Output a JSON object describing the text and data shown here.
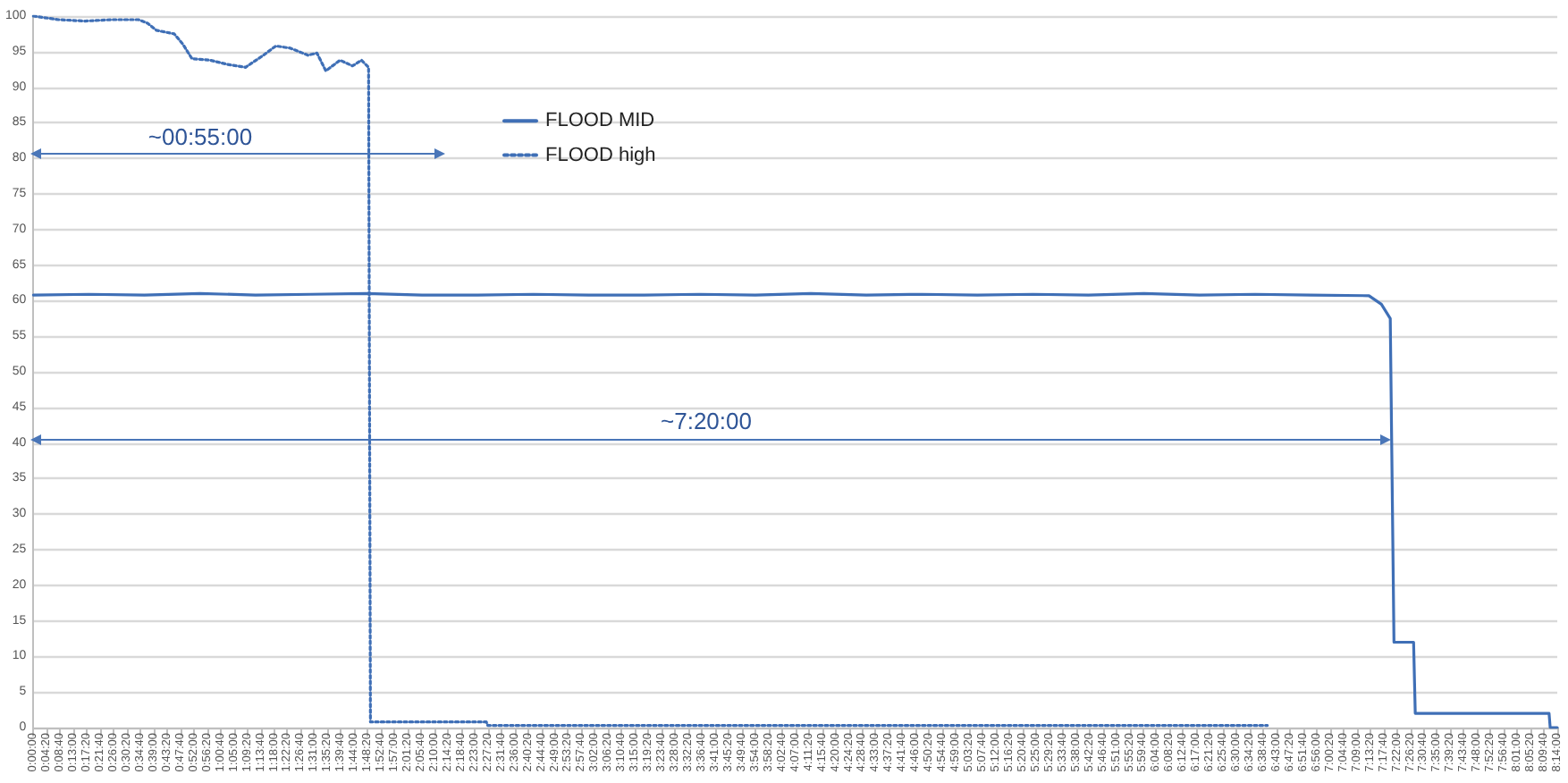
{
  "chart_data": {
    "type": "line",
    "legend": "top left",
    "grid": "y",
    "marker": "none",
    "xlim": [
      0,
      8.2333
    ],
    "ylim": [
      0,
      100
    ],
    "yticks": [
      0,
      5,
      10,
      15,
      20,
      25,
      30,
      35,
      40,
      45,
      50,
      55,
      60,
      65,
      70,
      75,
      80,
      85,
      90,
      95,
      100
    ],
    "xticks": [
      {
        "value": 0,
        "label": "0:00:00"
      },
      {
        "value": 0.0722,
        "label": "0:04:20"
      },
      {
        "value": 0.1444,
        "label": "0:08:40"
      },
      {
        "value": 0.2167,
        "label": "0:13:00"
      },
      {
        "value": 0.2889,
        "label": "0:17:20"
      },
      {
        "value": 0.3611,
        "label": "0:21:40"
      },
      {
        "value": 0.4333,
        "label": "0:26:00"
      },
      {
        "value": 0.5056,
        "label": "0:30:20"
      },
      {
        "value": 0.5778,
        "label": "0:34:40"
      },
      {
        "value": 0.65,
        "label": "0:39:00"
      },
      {
        "value": 0.7222,
        "label": "0:43:20"
      },
      {
        "value": 0.7944,
        "label": "0:47:40"
      },
      {
        "value": 0.8667,
        "label": "0:52:00"
      },
      {
        "value": 0.9389,
        "label": "0:56:20"
      },
      {
        "value": 1.0111,
        "label": "1:00:40"
      },
      {
        "value": 1.0833,
        "label": "1:05:00"
      },
      {
        "value": 1.1556,
        "label": "1:09:20"
      },
      {
        "value": 1.2278,
        "label": "1:13:40"
      },
      {
        "value": 1.3,
        "label": "1:18:00"
      },
      {
        "value": 1.3722,
        "label": "1:22:20"
      },
      {
        "value": 1.4444,
        "label": "1:26:40"
      },
      {
        "value": 1.5167,
        "label": "1:31:00"
      },
      {
        "value": 1.5889,
        "label": "1:35:20"
      },
      {
        "value": 1.6611,
        "label": "1:39:40"
      },
      {
        "value": 1.7333,
        "label": "1:44:00"
      },
      {
        "value": 1.8056,
        "label": "1:48:20"
      },
      {
        "value": 1.8778,
        "label": "1:52:40"
      },
      {
        "value": 1.95,
        "label": "1:57:00"
      },
      {
        "value": 2.0222,
        "label": "2:01:20"
      },
      {
        "value": 2.0944,
        "label": "2:05:40"
      },
      {
        "value": 2.1667,
        "label": "2:10:00"
      },
      {
        "value": 2.2389,
        "label": "2:14:20"
      },
      {
        "value": 2.3111,
        "label": "2:18:40"
      },
      {
        "value": 2.3833,
        "label": "2:23:00"
      },
      {
        "value": 2.4556,
        "label": "2:27:20"
      },
      {
        "value": 2.5278,
        "label": "2:31:40"
      },
      {
        "value": 2.6,
        "label": "2:36:00"
      },
      {
        "value": 2.6722,
        "label": "2:40:20"
      },
      {
        "value": 2.7444,
        "label": "2:44:40"
      },
      {
        "value": 2.8167,
        "label": "2:49:00"
      },
      {
        "value": 2.8889,
        "label": "2:53:20"
      },
      {
        "value": 2.9611,
        "label": "2:57:40"
      },
      {
        "value": 3.0333,
        "label": "3:02:00"
      },
      {
        "value": 3.1056,
        "label": "3:06:20"
      },
      {
        "value": 3.1778,
        "label": "3:10:40"
      },
      {
        "value": 3.25,
        "label": "3:15:00"
      },
      {
        "value": 3.3222,
        "label": "3:19:20"
      },
      {
        "value": 3.3944,
        "label": "3:23:40"
      },
      {
        "value": 3.4667,
        "label": "3:28:00"
      },
      {
        "value": 3.5389,
        "label": "3:32:20"
      },
      {
        "value": 3.6111,
        "label": "3:36:40"
      },
      {
        "value": 3.6833,
        "label": "3:41:00"
      },
      {
        "value": 3.7556,
        "label": "3:45:20"
      },
      {
        "value": 3.8278,
        "label": "3:49:40"
      },
      {
        "value": 3.9,
        "label": "3:54:00"
      },
      {
        "value": 3.9722,
        "label": "3:58:20"
      },
      {
        "value": 4.0444,
        "label": "4:02:40"
      },
      {
        "value": 4.1167,
        "label": "4:07:00"
      },
      {
        "value": 4.1889,
        "label": "4:11:20"
      },
      {
        "value": 4.2611,
        "label": "4:15:40"
      },
      {
        "value": 4.3333,
        "label": "4:20:00"
      },
      {
        "value": 4.4056,
        "label": "4:24:20"
      },
      {
        "value": 4.4778,
        "label": "4:28:40"
      },
      {
        "value": 4.55,
        "label": "4:33:00"
      },
      {
        "value": 4.6222,
        "label": "4:37:20"
      },
      {
        "value": 4.6944,
        "label": "4:41:40"
      },
      {
        "value": 4.7667,
        "label": "4:46:00"
      },
      {
        "value": 4.8389,
        "label": "4:50:20"
      },
      {
        "value": 4.9111,
        "label": "4:54:40"
      },
      {
        "value": 4.9833,
        "label": "4:59:00"
      },
      {
        "value": 5.0556,
        "label": "5:03:20"
      },
      {
        "value": 5.1278,
        "label": "5:07:40"
      },
      {
        "value": 5.2,
        "label": "5:12:00"
      },
      {
        "value": 5.2722,
        "label": "5:16:20"
      },
      {
        "value": 5.3444,
        "label": "5:20:40"
      },
      {
        "value": 5.4167,
        "label": "5:25:00"
      },
      {
        "value": 5.4889,
        "label": "5:29:20"
      },
      {
        "value": 5.5611,
        "label": "5:33:40"
      },
      {
        "value": 5.6333,
        "label": "5:38:00"
      },
      {
        "value": 5.7056,
        "label": "5:42:20"
      },
      {
        "value": 5.7778,
        "label": "5:46:40"
      },
      {
        "value": 5.85,
        "label": "5:51:00"
      },
      {
        "value": 5.9222,
        "label": "5:55:20"
      },
      {
        "value": 5.9944,
        "label": "5:59:40"
      },
      {
        "value": 6.0667,
        "label": "6:04:00"
      },
      {
        "value": 6.1389,
        "label": "6:08:20"
      },
      {
        "value": 6.2111,
        "label": "6:12:40"
      },
      {
        "value": 6.2833,
        "label": "6:17:00"
      },
      {
        "value": 6.3556,
        "label": "6:21:20"
      },
      {
        "value": 6.4278,
        "label": "6:25:40"
      },
      {
        "value": 6.5,
        "label": "6:30:00"
      },
      {
        "value": 6.5722,
        "label": "6:34:20"
      },
      {
        "value": 6.6444,
        "label": "6:38:40"
      },
      {
        "value": 6.7167,
        "label": "6:43:00"
      },
      {
        "value": 6.7889,
        "label": "6:47:20"
      },
      {
        "value": 6.8611,
        "label": "6:51:40"
      },
      {
        "value": 6.9333,
        "label": "6:56:00"
      },
      {
        "value": 7.0056,
        "label": "7:00:20"
      },
      {
        "value": 7.0778,
        "label": "7:04:40"
      },
      {
        "value": 7.15,
        "label": "7:09:00"
      },
      {
        "value": 7.2222,
        "label": "7:13:20"
      },
      {
        "value": 7.2944,
        "label": "7:17:40"
      },
      {
        "value": 7.3667,
        "label": "7:22:00"
      },
      {
        "value": 7.4389,
        "label": "7:26:20"
      },
      {
        "value": 7.5111,
        "label": "7:30:40"
      },
      {
        "value": 7.5833,
        "label": "7:35:00"
      },
      {
        "value": 7.6556,
        "label": "7:39:20"
      },
      {
        "value": 7.7278,
        "label": "7:43:40"
      },
      {
        "value": 7.8,
        "label": "7:48:00"
      },
      {
        "value": 7.8722,
        "label": "7:52:20"
      },
      {
        "value": 7.9444,
        "label": "7:56:40"
      },
      {
        "value": 8.0167,
        "label": "8:01:00"
      },
      {
        "value": 8.0889,
        "label": "8:05:20"
      },
      {
        "value": 8.1611,
        "label": "8:09:40"
      },
      {
        "value": 8.2333,
        "label": "8:14:00"
      }
    ],
    "series": [
      {
        "name": "FLOOD MID",
        "color": "#3f6fb6",
        "line_style": "solid",
        "x": [
          0,
          0.3,
          0.6,
          0.9,
          1.2,
          1.5,
          1.8,
          2.1,
          2.4,
          2.7,
          3.0,
          3.3,
          3.6,
          3.9,
          4.2,
          4.5,
          4.8,
          5.1,
          5.4,
          5.7,
          6.0,
          6.3,
          6.6,
          6.9,
          7.216,
          7.283,
          7.331,
          7.351,
          7.457,
          7.466,
          8.189,
          8.195,
          8.2333
        ],
        "values": [
          60.8,
          60.9,
          60.8,
          61,
          60.8,
          60.9,
          61,
          60.8,
          60.8,
          60.9,
          60.8,
          60.8,
          60.9,
          60.8,
          61,
          60.8,
          60.9,
          60.8,
          60.9,
          60.8,
          61,
          60.8,
          60.9,
          60.8,
          60.7,
          59.5,
          57.5,
          12,
          12,
          2,
          2,
          0,
          0
        ]
      },
      {
        "name": "FLOOD high",
        "color": "#3f6fb6",
        "line_style": "dotted",
        "x": [
          0,
          0.135,
          0.279,
          0.424,
          0.568,
          0.617,
          0.665,
          0.761,
          0.809,
          0.857,
          0.954,
          1.05,
          1.146,
          1.243,
          1.31,
          1.387,
          1.484,
          1.532,
          1.58,
          1.657,
          1.724,
          1.773,
          1.811,
          1.821,
          2.447,
          2.455,
          6.667
        ],
        "values": [
          100,
          99.5,
          99.3,
          99.5,
          99.5,
          99,
          98,
          97.5,
          96,
          94,
          93.8,
          93.2,
          92.8,
          94.5,
          95.8,
          95.5,
          94.5,
          94.8,
          92.3,
          93.8,
          93,
          93.8,
          92.8,
          0.8,
          0.8,
          0.3,
          0.3
        ]
      }
    ],
    "annotations": [
      "~00:55:00",
      "~7:20:00"
    ]
  }
}
